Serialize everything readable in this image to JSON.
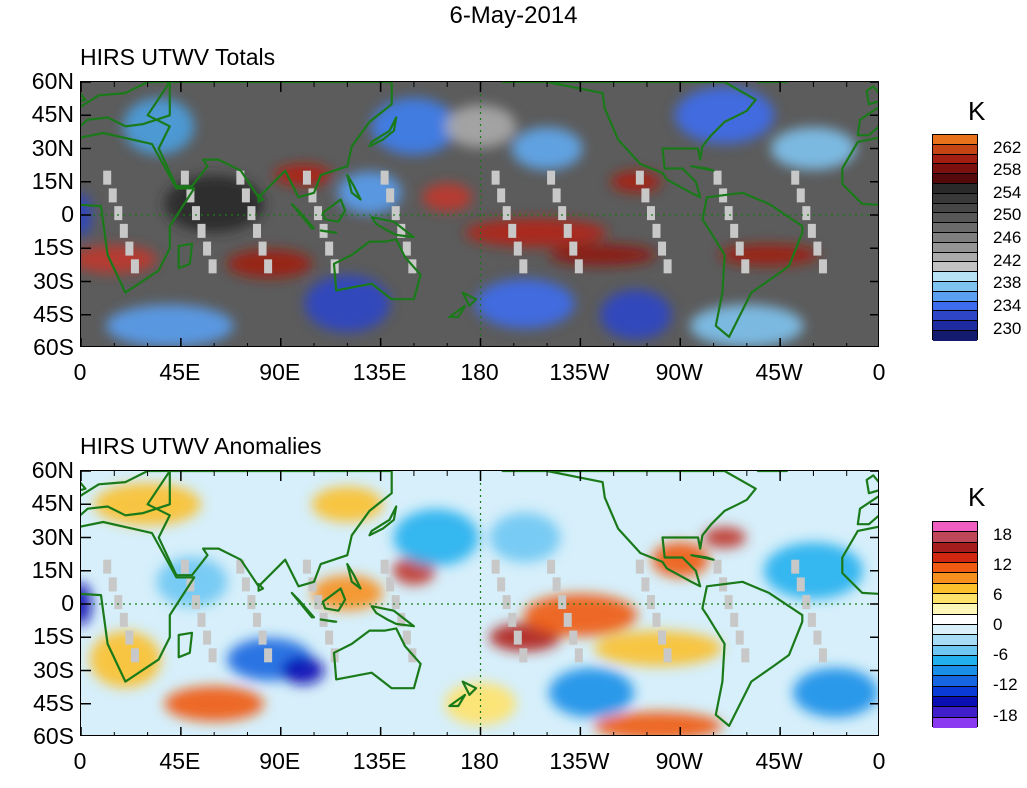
{
  "title": "6-May-2014",
  "panels": [
    {
      "title": "HIRS UTWV Totals",
      "unit": "K",
      "colorbar": {
        "colors": [
          "#e8711c",
          "#c44414",
          "#a21d12",
          "#7c100f",
          "#56090b",
          "#2a2a2a",
          "#393939",
          "#474747",
          "#575757",
          "#6b6b6b",
          "#7f7f7f",
          "#959595",
          "#ababab",
          "#c2c2c2",
          "#b7e3f5",
          "#7fc3f0",
          "#5a9ff0",
          "#3d6ded",
          "#2d45c6",
          "#1e2aa0",
          "#141a6e"
        ],
        "labels": [
          "262",
          "258",
          "254",
          "250",
          "246",
          "242",
          "238",
          "234",
          "230"
        ]
      },
      "map_base": "#5c5c5c",
      "blobs": [
        {
          "lon": 100,
          "lat": 18,
          "c": "#b21d12",
          "rx": 8,
          "ry": 3
        },
        {
          "lon": 165,
          "lat": 8,
          "c": "#c0392b",
          "rx": 7,
          "ry": 4
        },
        {
          "lon": 205,
          "lat": -8,
          "c": "#b32215",
          "rx": 20,
          "ry": 4
        },
        {
          "lon": 235,
          "lat": -18,
          "c": "#8f1b11",
          "rx": 15,
          "ry": 3
        },
        {
          "lon": 15,
          "lat": -20,
          "c": "#c0392b",
          "rx": 12,
          "ry": 4
        },
        {
          "lon": 85,
          "lat": -22,
          "c": "#9e1d12",
          "rx": 12,
          "ry": 4
        },
        {
          "lon": 310,
          "lat": -18,
          "c": "#a01c12",
          "rx": 14,
          "ry": 3
        },
        {
          "lon": 250,
          "lat": 15,
          "c": "#a91c13",
          "rx": 7,
          "ry": 3
        },
        {
          "lon": 35,
          "lat": 40,
          "c": "#4aa0e0",
          "rx": 10,
          "ry": 8
        },
        {
          "lon": 150,
          "lat": 40,
          "c": "#3f7ff0",
          "rx": 12,
          "ry": 8
        },
        {
          "lon": 210,
          "lat": 30,
          "c": "#5fa9ef",
          "rx": 10,
          "ry": 6
        },
        {
          "lon": 290,
          "lat": 45,
          "c": "#3d6ded",
          "rx": 14,
          "ry": 8
        },
        {
          "lon": 330,
          "lat": 30,
          "c": "#7fc3f0",
          "rx": 12,
          "ry": 6
        },
        {
          "lon": 120,
          "lat": -40,
          "c": "#2d45c6",
          "rx": 12,
          "ry": 8
        },
        {
          "lon": 40,
          "lat": -50,
          "c": "#5a9ff0",
          "rx": 18,
          "ry": 6
        },
        {
          "lon": 200,
          "lat": -40,
          "c": "#3d6ded",
          "rx": 14,
          "ry": 7
        },
        {
          "lon": 300,
          "lat": -50,
          "c": "#7fc3f0",
          "rx": 16,
          "ry": 6
        },
        {
          "lon": 250,
          "lat": -45,
          "c": "#2d45c6",
          "rx": 10,
          "ry": 7
        },
        {
          "lon": 130,
          "lat": 10,
          "c": "#5a9ff0",
          "rx": 9,
          "ry": 6
        },
        {
          "lon": 0,
          "lat": 0,
          "c": "#2d45c6",
          "rx": 3,
          "ry": 6
        },
        {
          "lon": 60,
          "lat": 5,
          "c": "#2a2a2a",
          "rx": 14,
          "ry": 8
        },
        {
          "lon": 180,
          "lat": 40,
          "c": "#ababab",
          "rx": 10,
          "ry": 6
        }
      ]
    },
    {
      "title": "HIRS UTWV Anomalies",
      "unit": "K",
      "colorbar": {
        "colors": [
          "#f15ec2",
          "#c0465a",
          "#a51d1d",
          "#d12610",
          "#f05a12",
          "#f7901f",
          "#fbc02b",
          "#ffe26a",
          "#fff7b8",
          "#ffffff",
          "#d9f0fb",
          "#a7dcf6",
          "#6ec6f3",
          "#23b0ee",
          "#1a8fe8",
          "#1566e0",
          "#0b3bd6",
          "#0a0fb4",
          "#3f1fc9",
          "#8a3af0"
        ],
        "labels": [
          "18",
          "12",
          "6",
          "0",
          "-6",
          "-12",
          "-18"
        ]
      },
      "map_base": "#d6effa",
      "blobs": [
        {
          "lon": 150,
          "lat": 15,
          "c": "#c0392b",
          "rx": 6,
          "ry": 4
        },
        {
          "lon": 200,
          "lat": -15,
          "c": "#b01e16",
          "rx": 10,
          "ry": 4
        },
        {
          "lon": 225,
          "lat": -5,
          "c": "#f05a12",
          "rx": 16,
          "ry": 6
        },
        {
          "lon": 270,
          "lat": 20,
          "c": "#f05a12",
          "rx": 8,
          "ry": 5
        },
        {
          "lon": 290,
          "lat": 30,
          "c": "#c0392b",
          "rx": 6,
          "ry": 3
        },
        {
          "lon": 85,
          "lat": -25,
          "c": "#1566e0",
          "rx": 12,
          "ry": 6
        },
        {
          "lon": 100,
          "lat": -30,
          "c": "#0a0fb4",
          "rx": 6,
          "ry": 4
        },
        {
          "lon": 30,
          "lat": 45,
          "c": "#fbc02b",
          "rx": 15,
          "ry": 6
        },
        {
          "lon": 120,
          "lat": 5,
          "c": "#f7901f",
          "rx": 10,
          "ry": 5
        },
        {
          "lon": 20,
          "lat": -25,
          "c": "#fbc02b",
          "rx": 10,
          "ry": 8
        },
        {
          "lon": 260,
          "lat": -20,
          "c": "#fbc02b",
          "rx": 18,
          "ry": 5
        },
        {
          "lon": 330,
          "lat": 15,
          "c": "#23b0ee",
          "rx": 14,
          "ry": 8
        },
        {
          "lon": 60,
          "lat": -45,
          "c": "#f05a12",
          "rx": 14,
          "ry": 5
        },
        {
          "lon": 260,
          "lat": -55,
          "c": "#f05a12",
          "rx": 18,
          "ry": 4
        },
        {
          "lon": 160,
          "lat": 30,
          "c": "#23b0ee",
          "rx": 12,
          "ry": 8
        },
        {
          "lon": 200,
          "lat": 30,
          "c": "#6ec6f3",
          "rx": 10,
          "ry": 7
        },
        {
          "lon": 230,
          "lat": -40,
          "c": "#1a8fe8",
          "rx": 12,
          "ry": 7
        },
        {
          "lon": 180,
          "lat": -45,
          "c": "#ffe26a",
          "rx": 10,
          "ry": 6
        },
        {
          "lon": 340,
          "lat": -40,
          "c": "#1a8fe8",
          "rx": 12,
          "ry": 7
        },
        {
          "lon": 0,
          "lat": 0,
          "c": "#0a0fb4",
          "rx": 3,
          "ry": 6
        },
        {
          "lon": 120,
          "lat": 45,
          "c": "#fbc02b",
          "rx": 10,
          "ry": 5
        },
        {
          "lon": 50,
          "lat": 10,
          "c": "#6ec6f3",
          "rx": 10,
          "ry": 7
        }
      ]
    }
  ],
  "lat_labels": [
    "60N",
    "45N",
    "30N",
    "15N",
    "0",
    "15S",
    "30S",
    "45S",
    "60S"
  ],
  "lon_labels": [
    "0",
    "45E",
    "90E",
    "135E",
    "180",
    "135W",
    "90W",
    "45W",
    "0"
  ],
  "colors": {
    "coastline": "#1a7a1a",
    "missing_data": "#c8c8c8"
  }
}
